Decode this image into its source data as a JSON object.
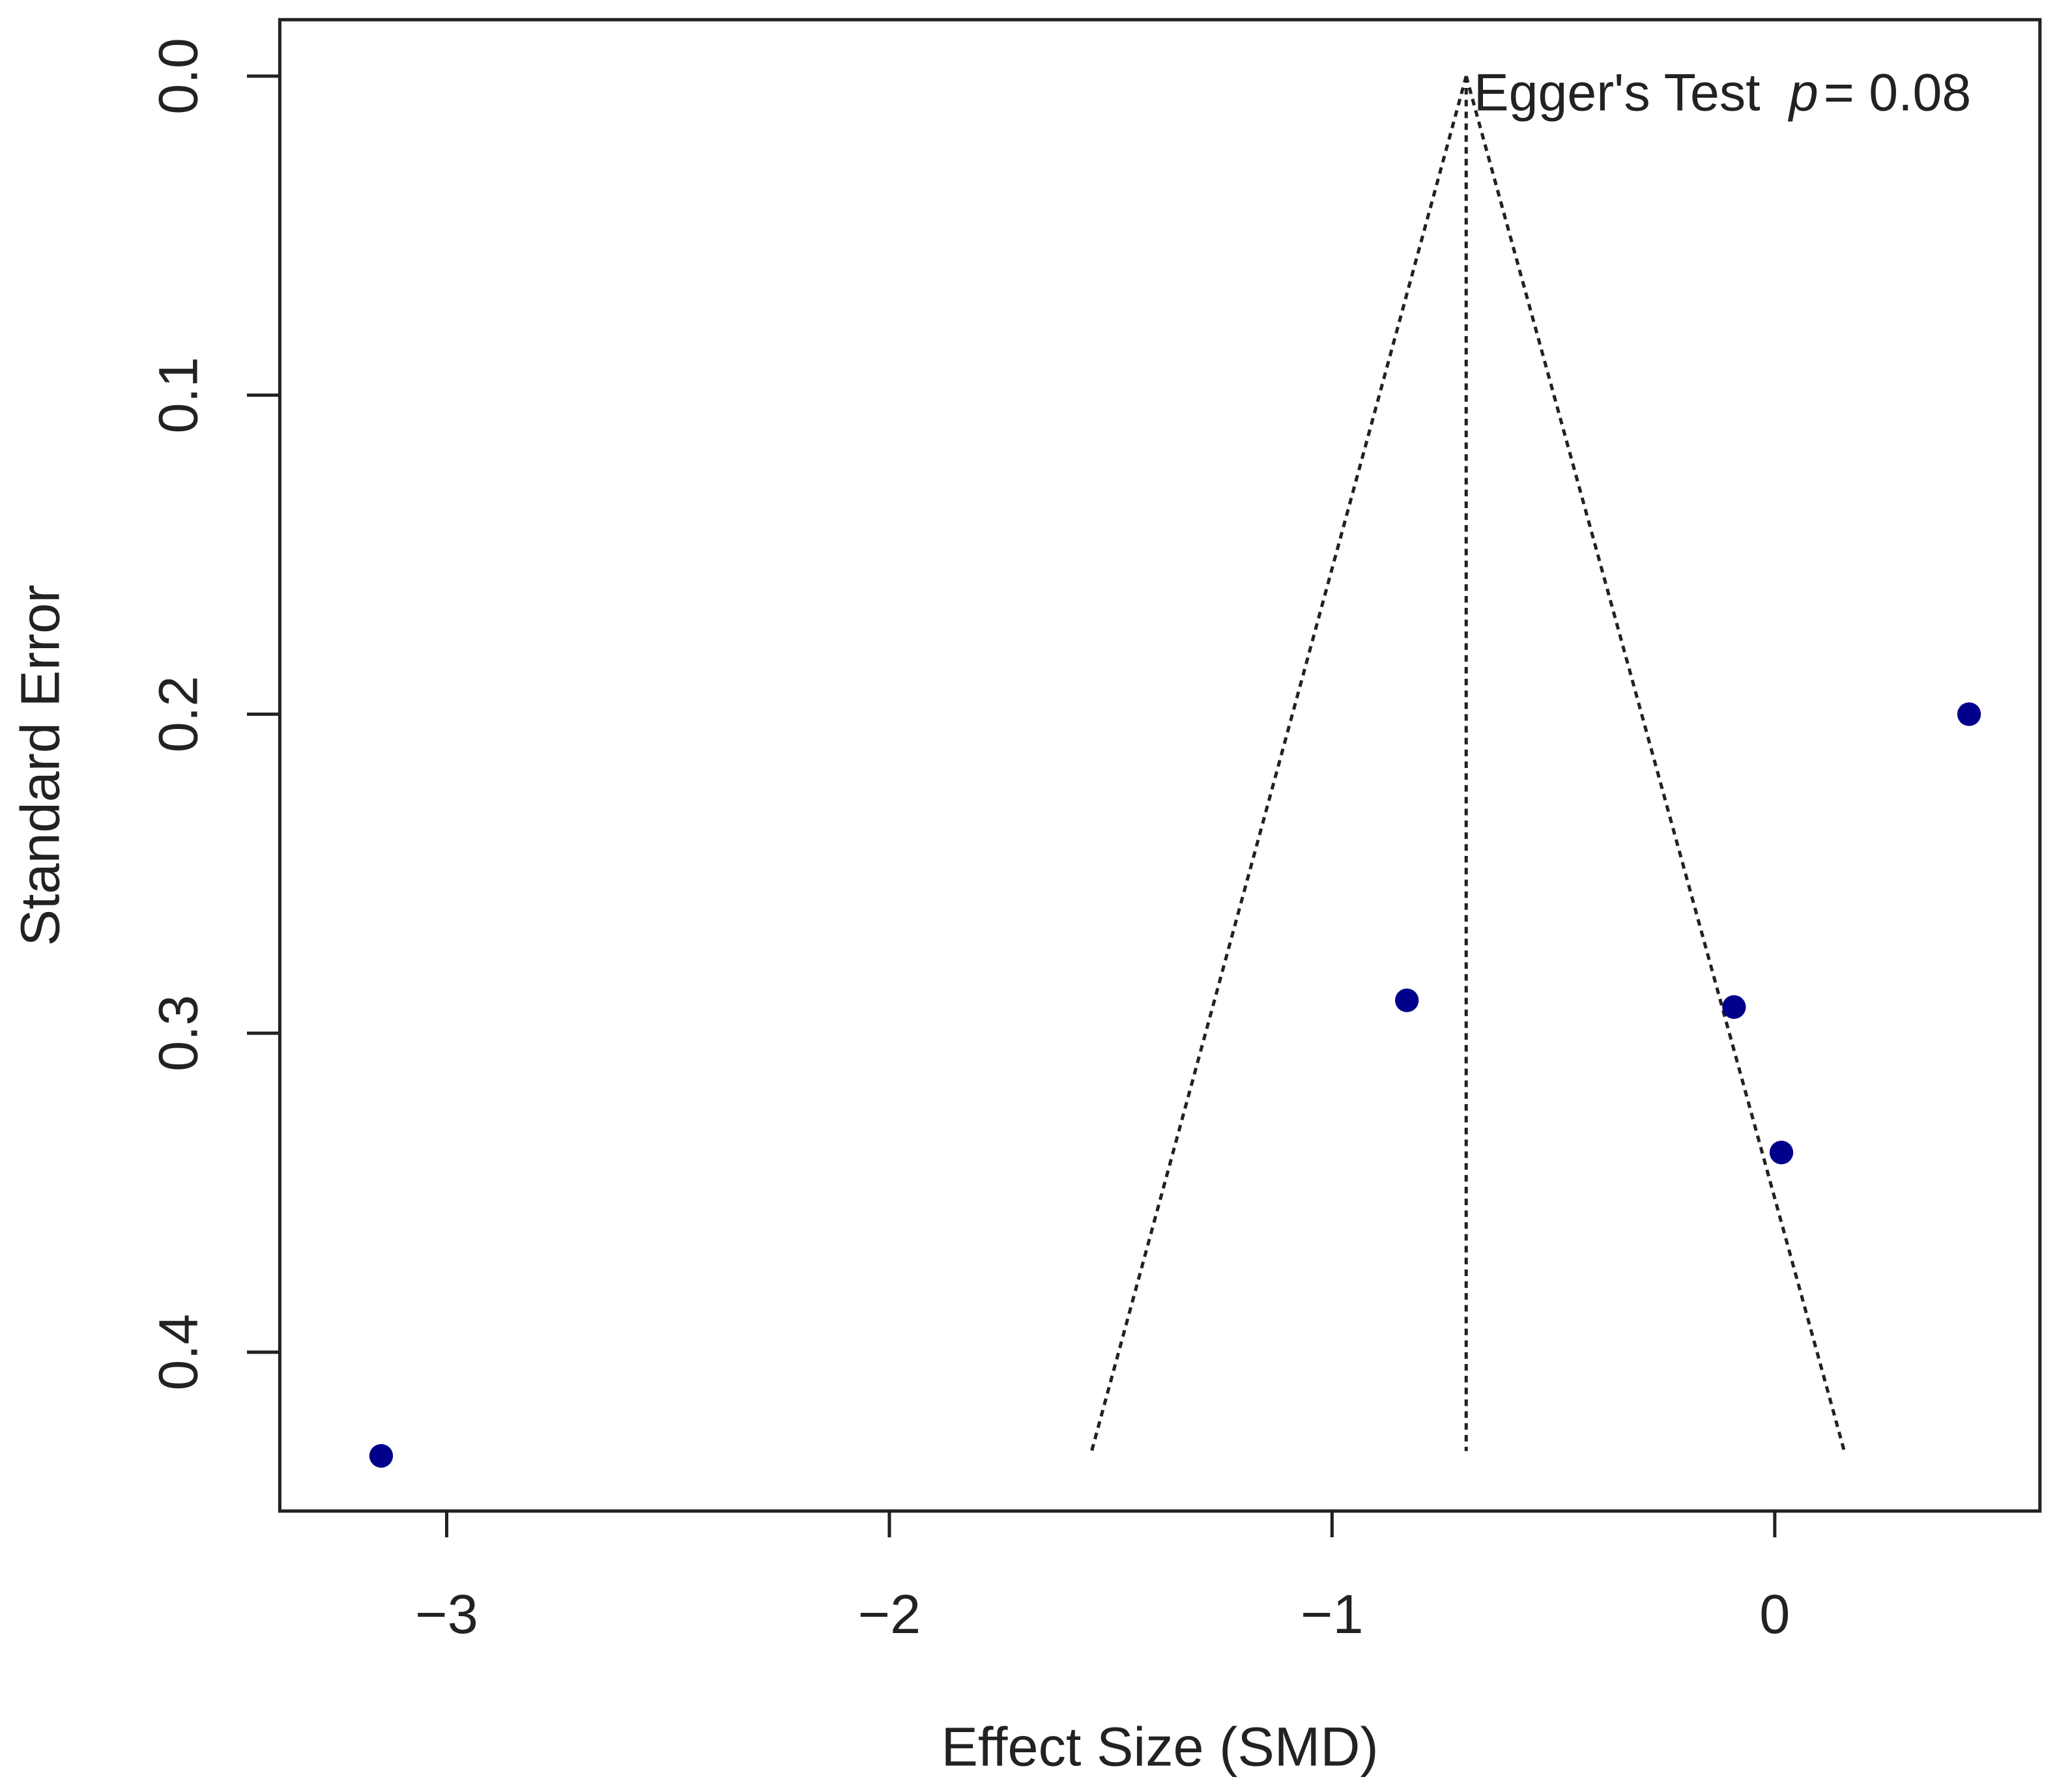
{
  "chart_data": {
    "type": "scatter",
    "x_label": "Effect Size (SMD)",
    "y_label": "Standard Error",
    "annotation": {
      "text": "Egger's Test",
      "p_symbol": "p",
      "p_value": "= 0.08"
    },
    "xlim": [
      -3.377,
      0.599
    ],
    "ylim": [
      0.4498,
      -0.0177
    ],
    "xticks": [
      {
        "value": -3,
        "label": "−3"
      },
      {
        "value": -2,
        "label": "−2"
      },
      {
        "value": -1,
        "label": "−1"
      },
      0
    ],
    "yticks": [
      {
        "value": 0,
        "label": "0.0"
      },
      0.1,
      0.2,
      0.3,
      0.4
    ],
    "series": [
      {
        "color": "#00008b",
        "x": [
          0.439,
          -0.831,
          -0.092,
          0.015,
          -3.148
        ],
        "values": [
          0.2,
          0.2897,
          0.2918,
          0.3374,
          0.4325
        ]
      }
    ],
    "funnel": {
      "apex_x": -0.697,
      "bottom_se": 0.431,
      "bottom_left_x": -1.543,
      "bottom_right_x": 0.157
    }
  }
}
